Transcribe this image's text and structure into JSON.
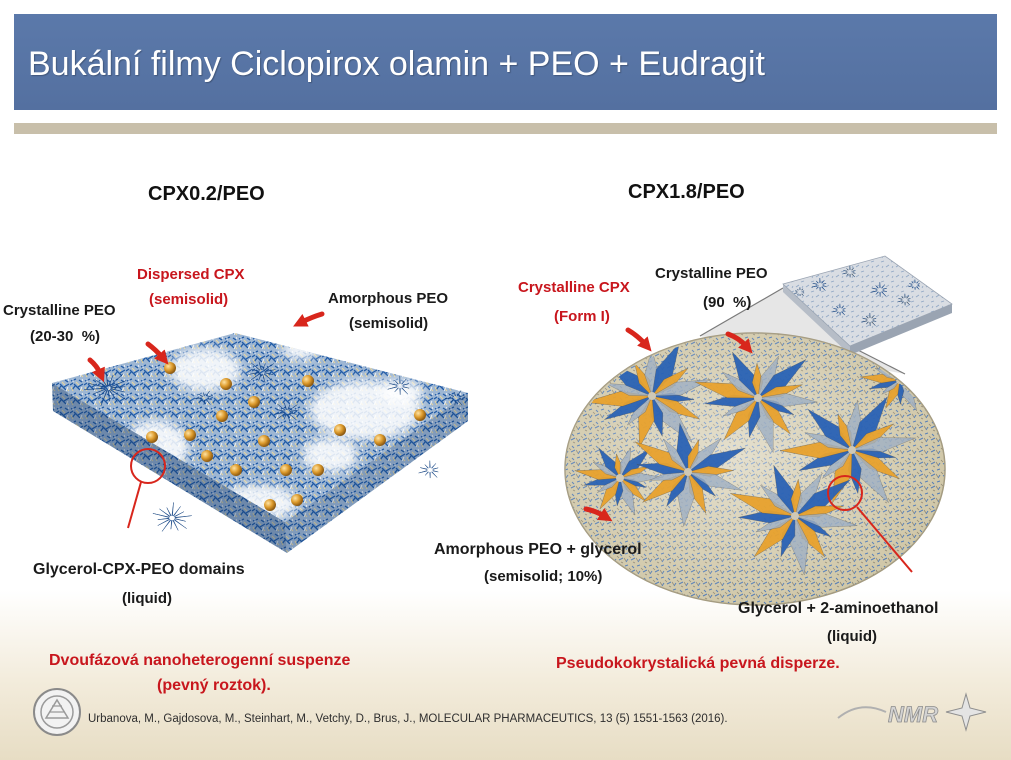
{
  "slide": {
    "title": "Bukální filmy Ciclopirox olamin + PEO + Eudragit"
  },
  "colors": {
    "header": "#5b79aa",
    "divider": "#c8bfaa",
    "label_red": "#c8161d",
    "label_black": "#1a1a1a",
    "film_blue": "#2a62b5",
    "crystal_orange": "#e8a22e",
    "cpx_sphere": "#d9962a"
  },
  "left_panel": {
    "heading": "CPX0.2/PEO",
    "labels": {
      "dispersed_cpx": "Dispersed CPX",
      "dispersed_cpx_state": "(semisolid)",
      "crystalline_peo": "Crystalline PEO",
      "crystalline_peo_fraction": "(20-30  %)",
      "amorphous_peo": "Amorphous PEO",
      "amorphous_peo_state": "(semisolid)",
      "liquid_domains": "Glycerol-CPX-PEO domains",
      "liquid_domains_state": "(liquid)"
    },
    "summary": {
      "line1": "Dvoufázová nanoheterogenní suspenze",
      "line2": "(pevný roztok)."
    }
  },
  "right_panel": {
    "heading": "CPX1.8/PEO",
    "labels": {
      "crystalline_cpx": "Crystalline CPX",
      "crystalline_cpx_form": "(Form I)",
      "crystalline_peo": "Crystalline PEO",
      "crystalline_peo_fraction": "(90  %)",
      "amorphous_peo_glycerol": "Amorphous PEO + glycerol",
      "amorphous_peo_glycerol_state": "(semisolid; 10%)",
      "liquid_phase": "Glycerol + 2-aminoethanol",
      "liquid_phase_state": "(liquid)"
    },
    "summary": {
      "line1": "Pseudokokrystalická pevná disperze."
    }
  },
  "footer": {
    "citation": "Urbanova, M., Gajdosova, M., Steinhart, M., Vetchy, D., Brus, J., MOLECULAR PHARMACEUTICS, 13 (5) 1551-1563 (2016).",
    "logo_text": "NMR",
    "left_logo_icon": "institute-seal-icon",
    "right_logo_icon": "nmr-star-logo-icon"
  }
}
